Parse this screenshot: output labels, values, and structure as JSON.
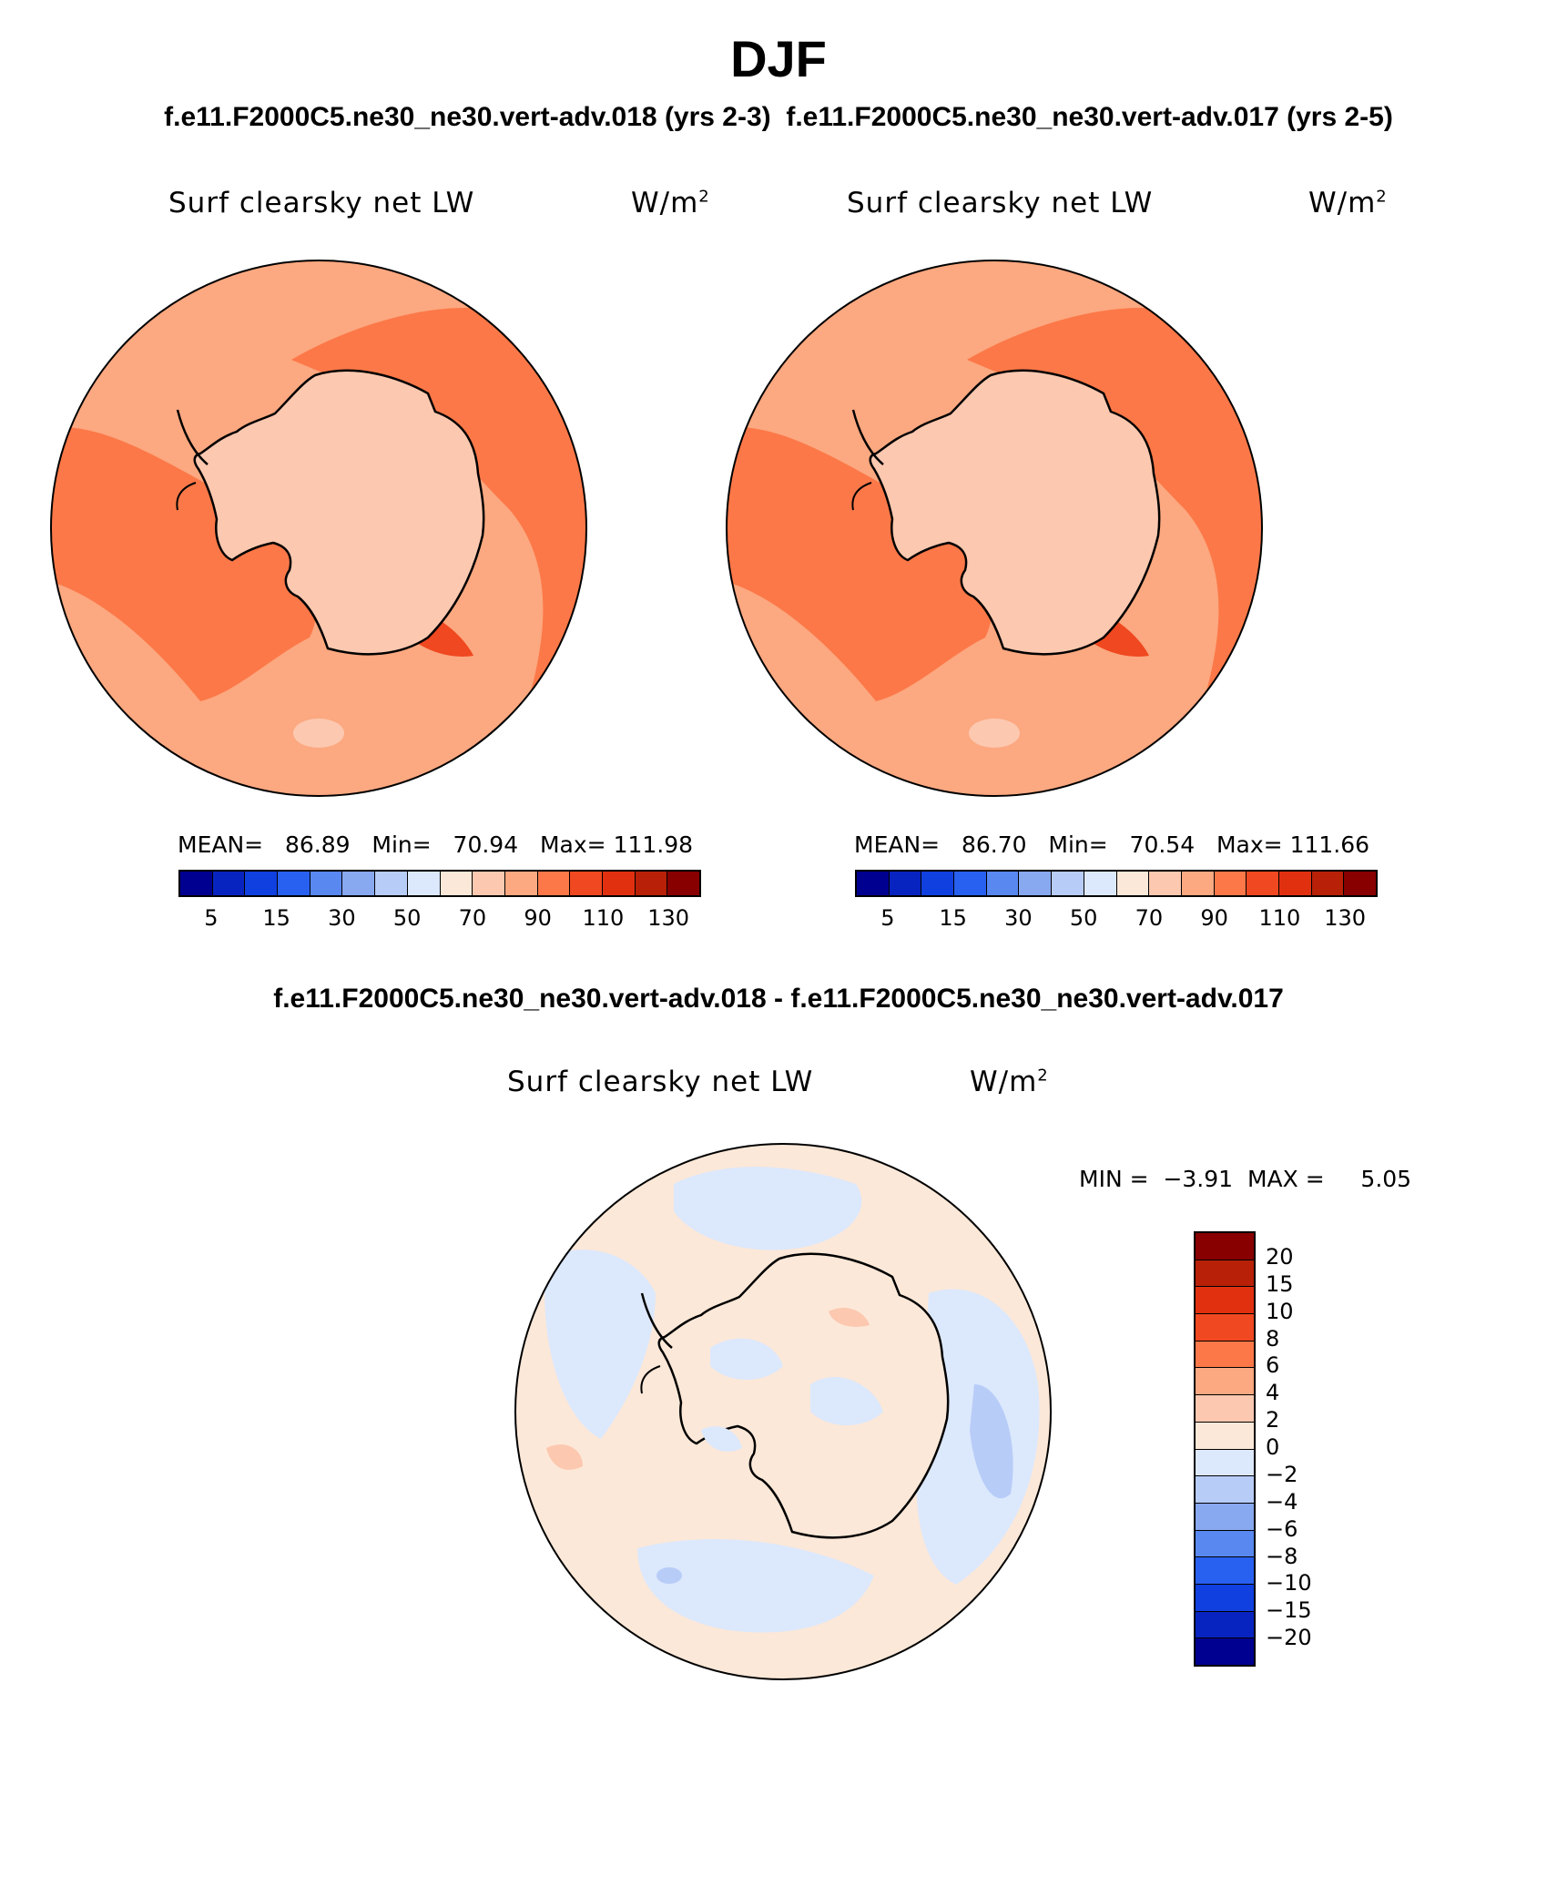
{
  "header": {
    "title": "DJF",
    "subtitle": "f.e11.F2000C5.ne30_ne30.vert-adv.018 (yrs 2-3)  f.e11.F2000C5.ne30_ne30.vert-adv.017 (yrs 2-5)",
    "diff_title": "f.e11.F2000C5.ne30_ne30.vert-adv.018 - f.e11.F2000C5.ne30_ne30.vert-adv.017"
  },
  "panels": [
    {
      "variable": "Surf clearsky net LW",
      "units": "W/m",
      "units_exp": "2",
      "stats": {
        "mean_label": "MEAN=",
        "mean": "86.89",
        "min_label": "Min=",
        "min": "70.94",
        "max_label": "Max=",
        "max": "111.98"
      }
    },
    {
      "variable": "Surf clearsky net LW",
      "units": "W/m",
      "units_exp": "2",
      "stats": {
        "mean_label": "MEAN=",
        "mean": "86.70",
        "min_label": "Min=",
        "min": "70.54",
        "max_label": "Max=",
        "max": "111.66"
      }
    }
  ],
  "diff_panel": {
    "variable": "Surf clearsky net LW",
    "units": "W/m",
    "units_exp": "2",
    "min_label": "MIN =",
    "min": "−3.91",
    "max_label": "MAX =",
    "max": "5.05"
  },
  "colorbar_main": {
    "ticks": [
      "5",
      "15",
      "30",
      "50",
      "70",
      "90",
      "110",
      "130"
    ],
    "colors": [
      "#000090",
      "#0824c0",
      "#1040e0",
      "#2860f0",
      "#5888f0",
      "#88a8f0",
      "#b8ccf8",
      "#dce8fc",
      "#fce8d8",
      "#fcc8b0",
      "#fca880",
      "#fc7848",
      "#f04820",
      "#e03010",
      "#b82008",
      "#880000"
    ]
  },
  "colorbar_diff": {
    "ticks": [
      "20",
      "15",
      "10",
      "8",
      "6",
      "4",
      "2",
      "0",
      "−2",
      "−4",
      "−6",
      "−8",
      "−10",
      "−15",
      "−20"
    ],
    "colors": [
      "#880000",
      "#b82008",
      "#e03010",
      "#f04820",
      "#fc7848",
      "#fca880",
      "#fcc8b0",
      "#fce8d8",
      "#dce8fc",
      "#b8ccf8",
      "#88a8f0",
      "#5888f0",
      "#2860f0",
      "#1040e0",
      "#0824c0",
      "#000090"
    ]
  },
  "map": {
    "region": "Antarctica",
    "projection": "south polar stereographic"
  }
}
